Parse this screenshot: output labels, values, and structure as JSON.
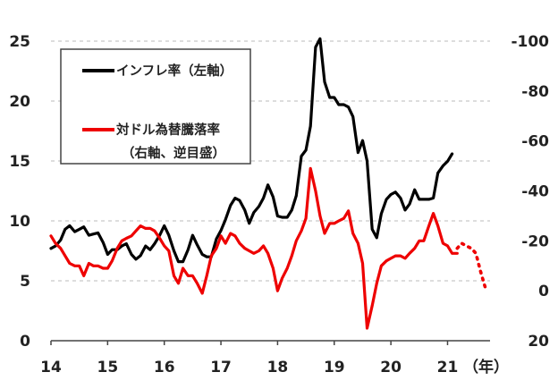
{
  "chart_data": {
    "type": "line",
    "x_axis": {
      "ticks": [
        "14",
        "15",
        "16",
        "17",
        "18",
        "19",
        "20",
        "21"
      ],
      "unit_label": "（年）",
      "range": [
        2014.0,
        2021.75
      ]
    },
    "y_left": {
      "ticks": [
        "0",
        "5",
        "10",
        "15",
        "20",
        "25"
      ],
      "range": [
        0,
        25
      ]
    },
    "y_right": {
      "ticks": [
        "-100",
        "-80",
        "-60",
        "-40",
        "-20",
        "0",
        "20"
      ],
      "range": [
        -100,
        20
      ],
      "inverted": true
    },
    "grid": "horizontal-dashed",
    "legend": {
      "placement": "top-left",
      "entries": [
        {
          "label": "インフレ率（左軸）",
          "color": "#000000"
        },
        {
          "label": "対ドル為替騰落率",
          "sublabel": "（右軸、逆目盛）",
          "color": "#ee0000"
        }
      ]
    },
    "series": [
      {
        "name": "インフレ率（左軸）",
        "axis": "left",
        "color": "#000000",
        "style": "solid",
        "points": [
          [
            2014.0,
            7.7
          ],
          [
            2014.08,
            7.9
          ],
          [
            2014.17,
            8.4
          ],
          [
            2014.25,
            9.3
          ],
          [
            2014.33,
            9.6
          ],
          [
            2014.42,
            9.1
          ],
          [
            2014.5,
            9.3
          ],
          [
            2014.58,
            9.5
          ],
          [
            2014.67,
            8.8
          ],
          [
            2014.75,
            8.9
          ],
          [
            2014.83,
            9.0
          ],
          [
            2014.92,
            8.2
          ],
          [
            2015.0,
            7.2
          ],
          [
            2015.08,
            7.6
          ],
          [
            2015.17,
            7.6
          ],
          [
            2015.25,
            7.9
          ],
          [
            2015.33,
            8.1
          ],
          [
            2015.42,
            7.2
          ],
          [
            2015.5,
            6.8
          ],
          [
            2015.58,
            7.1
          ],
          [
            2015.67,
            7.9
          ],
          [
            2015.75,
            7.6
          ],
          [
            2015.83,
            8.1
          ],
          [
            2015.92,
            8.8
          ],
          [
            2016.0,
            9.6
          ],
          [
            2016.08,
            8.8
          ],
          [
            2016.17,
            7.5
          ],
          [
            2016.25,
            6.6
          ],
          [
            2016.33,
            6.6
          ],
          [
            2016.42,
            7.6
          ],
          [
            2016.5,
            8.8
          ],
          [
            2016.58,
            8.0
          ],
          [
            2016.67,
            7.2
          ],
          [
            2016.75,
            7.0
          ],
          [
            2016.83,
            7.0
          ],
          [
            2016.92,
            8.5
          ],
          [
            2017.0,
            9.2
          ],
          [
            2017.08,
            10.1
          ],
          [
            2017.17,
            11.3
          ],
          [
            2017.25,
            11.9
          ],
          [
            2017.33,
            11.7
          ],
          [
            2017.42,
            10.9
          ],
          [
            2017.5,
            9.8
          ],
          [
            2017.58,
            10.7
          ],
          [
            2017.67,
            11.2
          ],
          [
            2017.75,
            11.9
          ],
          [
            2017.83,
            13.0
          ],
          [
            2017.92,
            12.0
          ],
          [
            2018.0,
            10.4
          ],
          [
            2018.08,
            10.3
          ],
          [
            2018.17,
            10.3
          ],
          [
            2018.25,
            10.9
          ],
          [
            2018.33,
            12.1
          ],
          [
            2018.42,
            15.4
          ],
          [
            2018.5,
            15.9
          ],
          [
            2018.58,
            17.9
          ],
          [
            2018.67,
            24.5
          ],
          [
            2018.75,
            25.2
          ],
          [
            2018.83,
            21.6
          ],
          [
            2018.92,
            20.3
          ],
          [
            2019.0,
            20.3
          ],
          [
            2019.08,
            19.7
          ],
          [
            2019.17,
            19.7
          ],
          [
            2019.25,
            19.5
          ],
          [
            2019.33,
            18.7
          ],
          [
            2019.42,
            15.7
          ],
          [
            2019.5,
            16.7
          ],
          [
            2019.58,
            15.0
          ],
          [
            2019.67,
            9.3
          ],
          [
            2019.75,
            8.6
          ],
          [
            2019.83,
            10.6
          ],
          [
            2019.92,
            11.8
          ],
          [
            2020.0,
            12.2
          ],
          [
            2020.08,
            12.4
          ],
          [
            2020.17,
            11.9
          ],
          [
            2020.25,
            10.9
          ],
          [
            2020.33,
            11.4
          ],
          [
            2020.42,
            12.6
          ],
          [
            2020.5,
            11.8
          ],
          [
            2020.58,
            11.8
          ],
          [
            2020.67,
            11.8
          ],
          [
            2020.75,
            11.9
          ],
          [
            2020.83,
            14.0
          ],
          [
            2020.92,
            14.6
          ],
          [
            2021.0,
            14.97
          ],
          [
            2021.08,
            15.6
          ]
        ]
      },
      {
        "name": "対ドル為替騰落率（右軸、逆目盛）",
        "axis": "right",
        "color": "#ee0000",
        "style": "solid",
        "points": [
          [
            2014.0,
            -22
          ],
          [
            2014.08,
            -19
          ],
          [
            2014.17,
            -17
          ],
          [
            2014.25,
            -14
          ],
          [
            2014.33,
            -11
          ],
          [
            2014.42,
            -10
          ],
          [
            2014.5,
            -10
          ],
          [
            2014.58,
            -6
          ],
          [
            2014.67,
            -11
          ],
          [
            2014.75,
            -10
          ],
          [
            2014.83,
            -10
          ],
          [
            2014.92,
            -9
          ],
          [
            2015.0,
            -9
          ],
          [
            2015.08,
            -12
          ],
          [
            2015.17,
            -17
          ],
          [
            2015.25,
            -20
          ],
          [
            2015.33,
            -21
          ],
          [
            2015.42,
            -22
          ],
          [
            2015.5,
            -24
          ],
          [
            2015.58,
            -26
          ],
          [
            2015.67,
            -25
          ],
          [
            2015.75,
            -25
          ],
          [
            2015.83,
            -24
          ],
          [
            2015.92,
            -21
          ],
          [
            2016.0,
            -18
          ],
          [
            2016.08,
            -16
          ],
          [
            2016.17,
            -6
          ],
          [
            2016.25,
            -3
          ],
          [
            2016.33,
            -9
          ],
          [
            2016.42,
            -6
          ],
          [
            2016.5,
            -6
          ],
          [
            2016.58,
            -3
          ],
          [
            2016.67,
            1
          ],
          [
            2016.75,
            -6
          ],
          [
            2016.83,
            -14
          ],
          [
            2016.92,
            -17
          ],
          [
            2017.0,
            -22
          ],
          [
            2017.08,
            -19
          ],
          [
            2017.17,
            -23
          ],
          [
            2017.25,
            -22
          ],
          [
            2017.33,
            -19
          ],
          [
            2017.42,
            -17
          ],
          [
            2017.5,
            -16
          ],
          [
            2017.58,
            -15
          ],
          [
            2017.67,
            -16
          ],
          [
            2017.75,
            -18
          ],
          [
            2017.83,
            -15
          ],
          [
            2017.92,
            -9
          ],
          [
            2018.0,
            0
          ],
          [
            2018.08,
            -5
          ],
          [
            2018.17,
            -9
          ],
          [
            2018.25,
            -14
          ],
          [
            2018.33,
            -20
          ],
          [
            2018.42,
            -24
          ],
          [
            2018.5,
            -29
          ],
          [
            2018.58,
            -49
          ],
          [
            2018.67,
            -40
          ],
          [
            2018.75,
            -30
          ],
          [
            2018.83,
            -23
          ],
          [
            2018.92,
            -27
          ],
          [
            2019.0,
            -27
          ],
          [
            2019.08,
            -28
          ],
          [
            2019.17,
            -29
          ],
          [
            2019.25,
            -32
          ],
          [
            2019.33,
            -23
          ],
          [
            2019.42,
            -19
          ],
          [
            2019.5,
            -11
          ],
          [
            2019.58,
            15
          ],
          [
            2019.67,
            6
          ],
          [
            2019.75,
            -3
          ],
          [
            2019.83,
            -10
          ],
          [
            2019.92,
            -12
          ],
          [
            2020.0,
            -13
          ],
          [
            2020.08,
            -14
          ],
          [
            2020.17,
            -14
          ],
          [
            2020.25,
            -13
          ],
          [
            2020.33,
            -15
          ],
          [
            2020.42,
            -17
          ],
          [
            2020.5,
            -20
          ],
          [
            2020.58,
            -20
          ],
          [
            2020.67,
            -26
          ],
          [
            2020.75,
            -31
          ],
          [
            2020.83,
            -26
          ],
          [
            2020.92,
            -19
          ],
          [
            2021.0,
            -18
          ],
          [
            2021.08,
            -15
          ],
          [
            2021.17,
            -15
          ]
        ]
      },
      {
        "name": "対ドル為替騰落率（右軸、逆目盛）",
        "axis": "right",
        "color": "#ee0000",
        "style": "dotted",
        "points": [
          [
            2021.17,
            -17
          ],
          [
            2021.25,
            -19
          ],
          [
            2021.33,
            -18
          ],
          [
            2021.42,
            -17
          ],
          [
            2021.5,
            -15
          ],
          [
            2021.58,
            -8
          ],
          [
            2021.67,
            -1
          ]
        ]
      }
    ]
  }
}
